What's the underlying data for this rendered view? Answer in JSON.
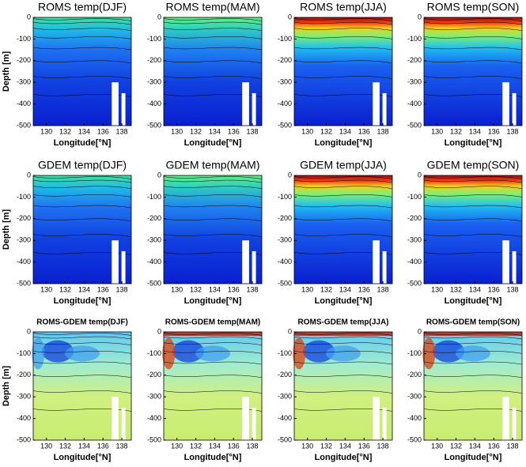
{
  "chart_data": [
    {
      "type": "contour",
      "title": "ROMS temp(DJF)",
      "xlabel": "Longitude[°N]",
      "ylabel": "Depth [m]",
      "xlim": [
        128.6,
        139
      ],
      "ylim": [
        -500,
        0
      ],
      "xticks": [
        130,
        132,
        134,
        136,
        138
      ],
      "yticks": [
        0,
        -100,
        -200,
        -300,
        -400,
        -500
      ]
    },
    {
      "type": "contour",
      "title": "ROMS temp(MAM)",
      "xlabel": "Longitude[°N]",
      "xlim": [
        128.6,
        139
      ],
      "ylim": [
        -500,
        0
      ],
      "xticks": [
        130,
        132,
        134,
        136,
        138
      ],
      "yticks": [
        0,
        -100,
        -200,
        -300,
        -400,
        -500
      ]
    },
    {
      "type": "contour",
      "title": "ROMS temp(JJA)",
      "xlabel": "Longitude[°N]",
      "xlim": [
        128.6,
        139
      ],
      "ylim": [
        -500,
        0
      ],
      "xticks": [
        130,
        132,
        134,
        136,
        138
      ],
      "yticks": [
        0,
        -100,
        -200,
        -300,
        -400,
        -500
      ]
    },
    {
      "type": "contour",
      "title": "ROMS temp(SON)",
      "xlabel": "Longitude[°N]",
      "xlim": [
        128.6,
        139
      ],
      "ylim": [
        -500,
        0
      ],
      "xticks": [
        130,
        132,
        134,
        136,
        138
      ],
      "yticks": [
        0,
        -100,
        -200,
        -300,
        -400,
        -500
      ]
    },
    {
      "type": "contour",
      "title": "GDEM temp(DJF)",
      "xlabel": "Longitude[°N]",
      "ylabel": "Depth [m]",
      "xlim": [
        128.6,
        139
      ],
      "ylim": [
        -500,
        0
      ],
      "xticks": [
        130,
        132,
        134,
        136,
        138
      ],
      "yticks": [
        0,
        -100,
        -200,
        -300,
        -400,
        -500
      ]
    },
    {
      "type": "contour",
      "title": "GDEM temp(MAM)",
      "xlabel": "Longitude[°N]",
      "xlim": [
        128.6,
        139
      ],
      "ylim": [
        -500,
        0
      ],
      "xticks": [
        130,
        132,
        134,
        136,
        138
      ],
      "yticks": [
        0,
        -100,
        -200,
        -300,
        -400,
        -500
      ]
    },
    {
      "type": "contour",
      "title": "GDEM temp(JJA)",
      "xlabel": "Longitude[°N]",
      "xlim": [
        128.6,
        139
      ],
      "ylim": [
        -500,
        0
      ],
      "xticks": [
        130,
        132,
        134,
        136,
        138
      ],
      "yticks": [
        0,
        -100,
        -200,
        -300,
        -400,
        -500
      ]
    },
    {
      "type": "contour",
      "title": "GDEM temp(SON)",
      "xlabel": "Longitude[°N]",
      "xlim": [
        128.6,
        139
      ],
      "ylim": [
        -500,
        0
      ],
      "xticks": [
        130,
        132,
        134,
        136,
        138
      ],
      "yticks": [
        0,
        -100,
        -200,
        -300,
        -400,
        -500
      ]
    },
    {
      "type": "contour",
      "title": "ROMS-GDEM temp(DJF)",
      "xlabel": "Longitude[°N]",
      "ylabel": "Depth [m]",
      "xlim": [
        128.6,
        139
      ],
      "ylim": [
        -500,
        0
      ],
      "xticks": [
        130,
        132,
        134,
        136,
        138
      ],
      "yticks": [
        0,
        -100,
        -200,
        -300,
        -400,
        -500
      ]
    },
    {
      "type": "contour",
      "title": "ROMS-GDEM temp(MAM)",
      "xlabel": "Longitude[°N]",
      "xlim": [
        128.6,
        139
      ],
      "ylim": [
        -500,
        0
      ],
      "xticks": [
        130,
        132,
        134,
        136,
        138
      ],
      "yticks": [
        0,
        -100,
        -200,
        -300,
        -400,
        -500
      ]
    },
    {
      "type": "contour",
      "title": "ROMS-GDEM temp(JJA)",
      "xlabel": "Longitude[°N]",
      "xlim": [
        128.6,
        139
      ],
      "ylim": [
        -500,
        0
      ],
      "xticks": [
        130,
        132,
        134,
        136,
        138
      ],
      "yticks": [
        0,
        -100,
        -200,
        -300,
        -400,
        -500
      ]
    },
    {
      "type": "contour",
      "title": "ROMS-GDEM temp(SON)",
      "xlabel": "Longitude[°N]",
      "xlim": [
        128.6,
        139
      ],
      "ylim": [
        -500,
        0
      ],
      "xticks": [
        130,
        132,
        134,
        136,
        138
      ],
      "yticks": [
        0,
        -100,
        -200,
        -300,
        -400,
        -500
      ]
    }
  ]
}
